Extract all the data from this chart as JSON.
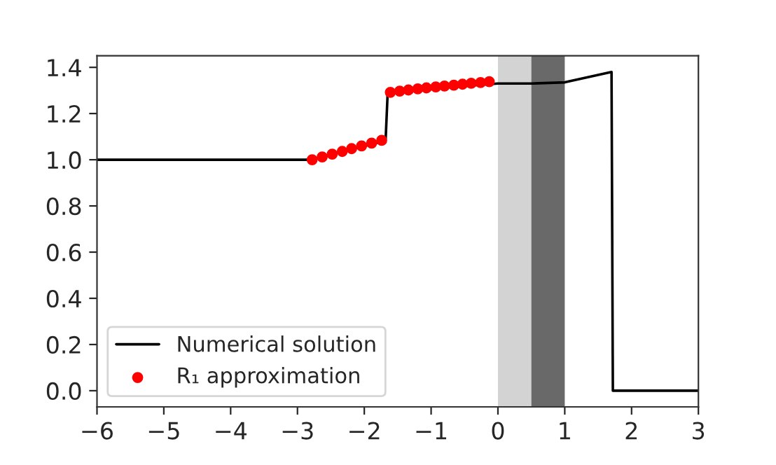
{
  "chart_data": {
    "type": "line",
    "xlim": [
      -6,
      3
    ],
    "ylim": [
      -0.07,
      1.45
    ],
    "xticks": [
      {
        "value": -6,
        "label": "−6"
      },
      {
        "value": -5,
        "label": "−5"
      },
      {
        "value": -4,
        "label": "−4"
      },
      {
        "value": -3,
        "label": "−3"
      },
      {
        "value": -2,
        "label": "−2"
      },
      {
        "value": -1,
        "label": "−1"
      },
      0,
      1,
      2,
      3
    ],
    "yticks": [
      {
        "value": 0,
        "label": "0.0"
      },
      {
        "value": 0.2,
        "label": "0.2"
      },
      {
        "value": 0.4,
        "label": "0.4"
      },
      {
        "value": 0.6,
        "label": "0.6"
      },
      {
        "value": 0.8,
        "label": "0.8"
      },
      {
        "value": 1.0,
        "label": "1.0"
      },
      {
        "value": 1.2,
        "label": "1.2"
      },
      {
        "value": 1.4,
        "label": "1.4"
      }
    ],
    "series": [
      {
        "name": "Numerical solution",
        "color": "#000000",
        "marker": "none",
        "x": [
          -6,
          -2.8,
          -1.72,
          -1.68,
          -1.65,
          -1.6,
          0,
          0.5,
          1.0,
          1.7,
          1.72,
          3
        ],
        "values": [
          1.0,
          1.0,
          1.08,
          1.09,
          1.29,
          1.295,
          1.33,
          1.33,
          1.335,
          1.38,
          0.0,
          0.0
        ]
      },
      {
        "name": "R₁ approximation",
        "type": "scatter",
        "color": "#ff0000",
        "marker": "circle",
        "x": [
          -2.78,
          -2.63,
          -2.48,
          -2.33,
          -2.19,
          -2.04,
          -1.89,
          -1.74,
          -1.61,
          -1.47,
          -1.34,
          -1.2,
          -1.07,
          -0.93,
          -0.8,
          -0.66,
          -0.53,
          -0.4,
          -0.26,
          -0.13
        ],
        "values": [
          1.0,
          1.012,
          1.024,
          1.036,
          1.048,
          1.06,
          1.072,
          1.084,
          1.292,
          1.297,
          1.302,
          1.307,
          1.311,
          1.315,
          1.319,
          1.323,
          1.327,
          1.331,
          1.334,
          1.338
        ]
      }
    ],
    "bands": [
      {
        "axis": "x",
        "from": 0,
        "to": 0.5,
        "color": "#d3d3d3"
      },
      {
        "axis": "x",
        "from": 0.5,
        "to": 1,
        "color": "#696969"
      }
    ],
    "legend": "bottom left",
    "grid": false
  }
}
